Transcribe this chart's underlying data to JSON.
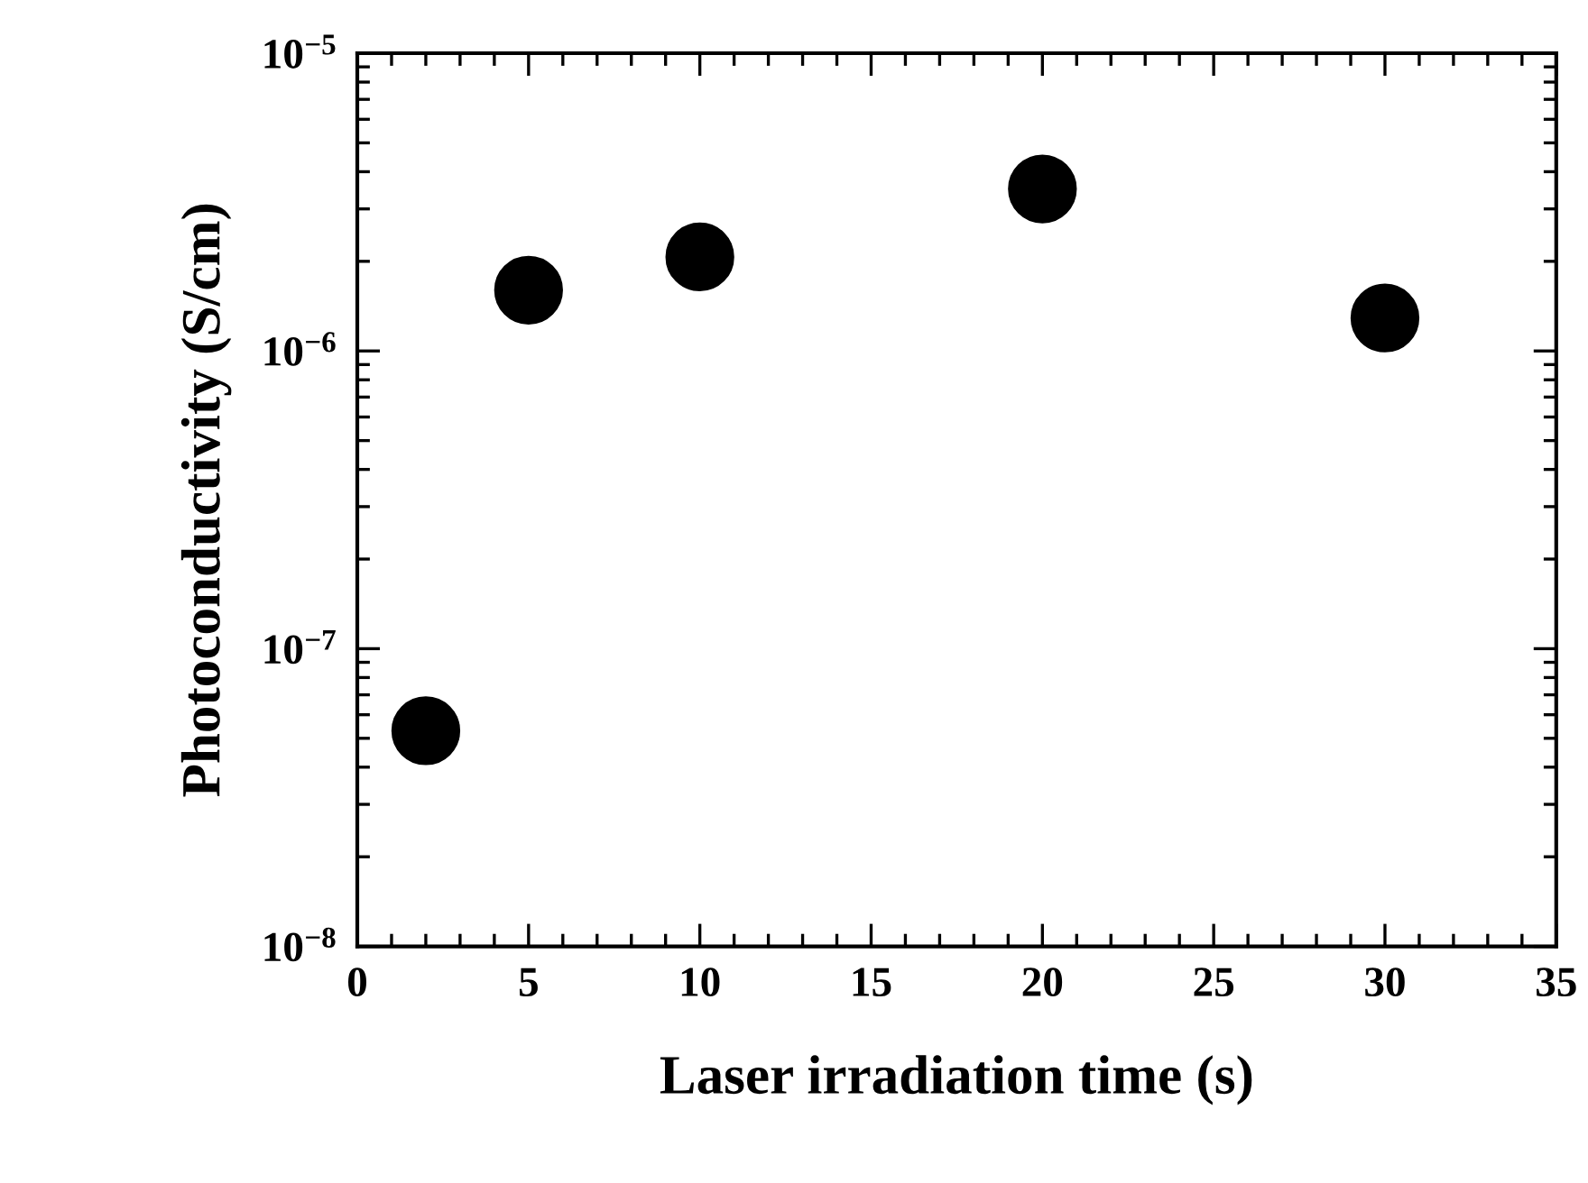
{
  "chart_data": {
    "type": "scatter",
    "xlabel": "Laser irradiation time (s)",
    "ylabel": "Photoconductivity (S/cm)",
    "x": [
      2,
      5,
      10,
      20,
      30
    ],
    "series": [
      {
        "color": "#000000",
        "values": [
          5.3e-08,
          1.6e-06,
          2.07e-06,
          3.5e-06,
          1.29e-06
        ]
      }
    ],
    "log": "y",
    "marker": "circle",
    "grid": false,
    "legend": false,
    "xlim": [
      0,
      35
    ],
    "xticks": [
      0,
      5,
      10,
      15,
      20,
      25,
      30,
      35
    ],
    "ylim": [
      1e-08,
      1e-05
    ],
    "yticks": [
      {
        "value": 1e-08,
        "label": "10$^{−8}$"
      },
      {
        "value": 1e-07,
        "label": "10$^{−7}$"
      },
      {
        "value": 1e-06,
        "label": "10$^{−6}$"
      },
      {
        "value": 1e-05,
        "label": "10$^{−5}$"
      }
    ]
  }
}
